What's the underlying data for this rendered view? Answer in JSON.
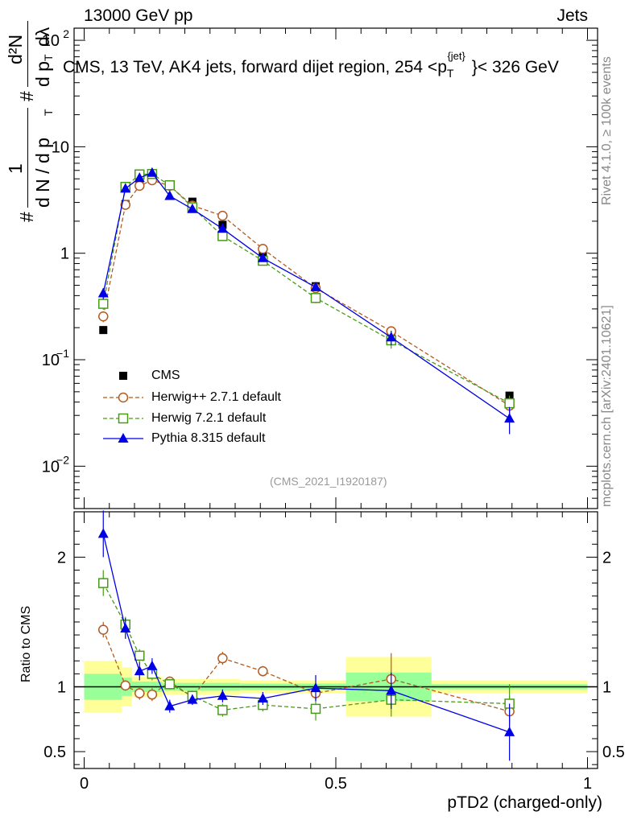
{
  "header": {
    "left": "13000 GeV pp",
    "right": "Jets"
  },
  "side_labels": {
    "rivet": "Rivet 4.1.0, ≥ 100k events",
    "mcplots": "mcplots.cern.ch [arXiv:2401.10621]"
  },
  "y_title_parts": {
    "hash": "#",
    "one": "1",
    "den": "d N / d p",
    "sub": "T",
    "frac_hash": "#",
    "num": "d²N",
    "den2a": "d p",
    "den2b": "dλ"
  },
  "ratio_ylabel": "Ratio to CMS",
  "watermark": "(CMS_2021_I1920187)",
  "colors": {
    "cms": "#000000",
    "herwigpp": "#b35a1f",
    "herwig7": "#4a9a1a",
    "pythia": "#0000e6",
    "band_yellow": "#ffff99",
    "band_green": "#99ff99"
  },
  "chart_data": {
    "type": "line",
    "title": "CMS, 13 TeV, AK4 jets, forward dijet region, 254 <p",
    "title_sup": "{jet}",
    "title_sub": "T",
    "title_end": "}< 326 GeV",
    "xlabel": "pTD2 (charged-only)",
    "x": [
      0.038,
      0.082,
      0.11,
      0.135,
      0.17,
      0.215,
      0.275,
      0.355,
      0.46,
      0.61,
      0.845
    ],
    "xlim": [
      -0.02,
      1.02
    ],
    "main": {
      "yscale": "log",
      "ylim": [
        0.004,
        130
      ],
      "yticks": [
        {
          "v": 0.01,
          "t": "10",
          "e": "−2"
        },
        {
          "v": 0.1,
          "t": "10",
          "e": "−1"
        },
        {
          "v": 1,
          "t": "1",
          "e": ""
        },
        {
          "v": 10,
          "t": "10",
          "e": ""
        },
        {
          "v": 100,
          "t": "10",
          "e": "2"
        }
      ],
      "series": [
        {
          "name": "CMS",
          "style": "data",
          "values": [
            0.19,
            2.9,
            4.9,
            5.2,
            4.3,
            3.05,
            1.85,
            1.02,
            0.49,
            0.175,
            0.046
          ],
          "errors": [
            0.01,
            0.2,
            0.3,
            0.3,
            0.2,
            0.15,
            0.1,
            0.05,
            0.03,
            0.015,
            0.004
          ]
        },
        {
          "name": "Herwig++ 2.7.1 default",
          "style": "herwigpp",
          "values": [
            0.255,
            2.85,
            4.3,
            4.85,
            4.3,
            2.8,
            2.25,
            1.1,
            0.47,
            0.185,
            0.037
          ],
          "errors": [
            0.03,
            0.15,
            0.2,
            0.2,
            0.2,
            0.15,
            0.1,
            0.06,
            0.03,
            0.02,
            0.006
          ]
        },
        {
          "name": "Herwig 7.2.1 default",
          "style": "herwig7",
          "values": [
            0.335,
            4.2,
            5.5,
            5.55,
            4.35,
            2.7,
            1.45,
            0.85,
            0.38,
            0.152,
            0.039
          ],
          "errors": [
            0.04,
            0.2,
            0.3,
            0.3,
            0.2,
            0.15,
            0.1,
            0.06,
            0.04,
            0.025,
            0.007
          ]
        },
        {
          "name": "Pythia 8.315 default",
          "style": "pythia",
          "values": [
            0.42,
            4.05,
            5.1,
            5.7,
            3.45,
            2.6,
            1.7,
            0.9,
            0.48,
            0.162,
            0.028
          ],
          "errors": [
            0.05,
            0.2,
            0.3,
            0.3,
            0.2,
            0.15,
            0.1,
            0.06,
            0.04,
            0.025,
            0.008
          ]
        }
      ]
    },
    "ratio": {
      "ylim": [
        0.37,
        2.35
      ],
      "yticks": [
        0.5,
        1,
        2
      ],
      "bands": [
        {
          "x0": 0.0,
          "x1": 0.075,
          "y_lo": 0.8,
          "y_hi": 1.2,
          "g_lo": 0.9,
          "g_hi": 1.1
        },
        {
          "x0": 0.075,
          "x1": 0.095,
          "y_lo": 0.85,
          "y_hi": 1.15,
          "g_lo": 0.93,
          "g_hi": 1.07
        },
        {
          "x0": 0.095,
          "x1": 0.155,
          "y_lo": 0.92,
          "y_hi": 1.08,
          "g_lo": 0.96,
          "g_hi": 1.04
        },
        {
          "x0": 0.155,
          "x1": 0.31,
          "y_lo": 0.94,
          "y_hi": 1.06,
          "g_lo": 0.97,
          "g_hi": 1.03
        },
        {
          "x0": 0.31,
          "x1": 0.52,
          "y_lo": 0.95,
          "y_hi": 1.05,
          "g_lo": 0.975,
          "g_hi": 1.025
        },
        {
          "x0": 0.52,
          "x1": 0.69,
          "y_lo": 0.77,
          "y_hi": 1.23,
          "g_lo": 0.89,
          "g_hi": 1.11
        },
        {
          "x0": 0.69,
          "x1": 1.0,
          "y_lo": 0.95,
          "y_hi": 1.05,
          "g_lo": 0.98,
          "g_hi": 1.02
        }
      ],
      "series": [
        {
          "name": "Herwig++ 2.7.1 default",
          "style": "herwigpp",
          "values": [
            1.44,
            1.01,
            0.95,
            0.94,
            1.04,
            0.92,
            1.22,
            1.12,
            0.95,
            1.06,
            0.81
          ],
          "errors": [
            0.06,
            0.04,
            0.05,
            0.05,
            0.04,
            0.04,
            0.05,
            0.04,
            0.05,
            0.2,
            0.12
          ]
        },
        {
          "name": "Herwig 7.2.1 default",
          "style": "herwig7",
          "values": [
            1.8,
            1.48,
            1.24,
            1.1,
            1.02,
            0.93,
            0.82,
            0.86,
            0.83,
            0.9,
            0.87
          ],
          "errors": [
            0.1,
            0.06,
            0.05,
            0.05,
            0.04,
            0.04,
            0.05,
            0.05,
            0.09,
            0.13,
            0.15
          ]
        },
        {
          "name": "Pythia 8.315 default",
          "style": "pythia",
          "values": [
            2.18,
            1.45,
            1.12,
            1.16,
            0.85,
            0.9,
            0.93,
            0.91,
            0.99,
            0.97,
            0.65
          ],
          "errors": [
            0.18,
            0.08,
            0.07,
            0.06,
            0.05,
            0.04,
            0.05,
            0.05,
            0.1,
            0.14,
            0.22
          ]
        }
      ]
    },
    "xticks": [
      {
        "v": 0,
        "t": "0"
      },
      {
        "v": 0.5,
        "t": "0.5"
      },
      {
        "v": 1,
        "t": "1"
      }
    ]
  }
}
